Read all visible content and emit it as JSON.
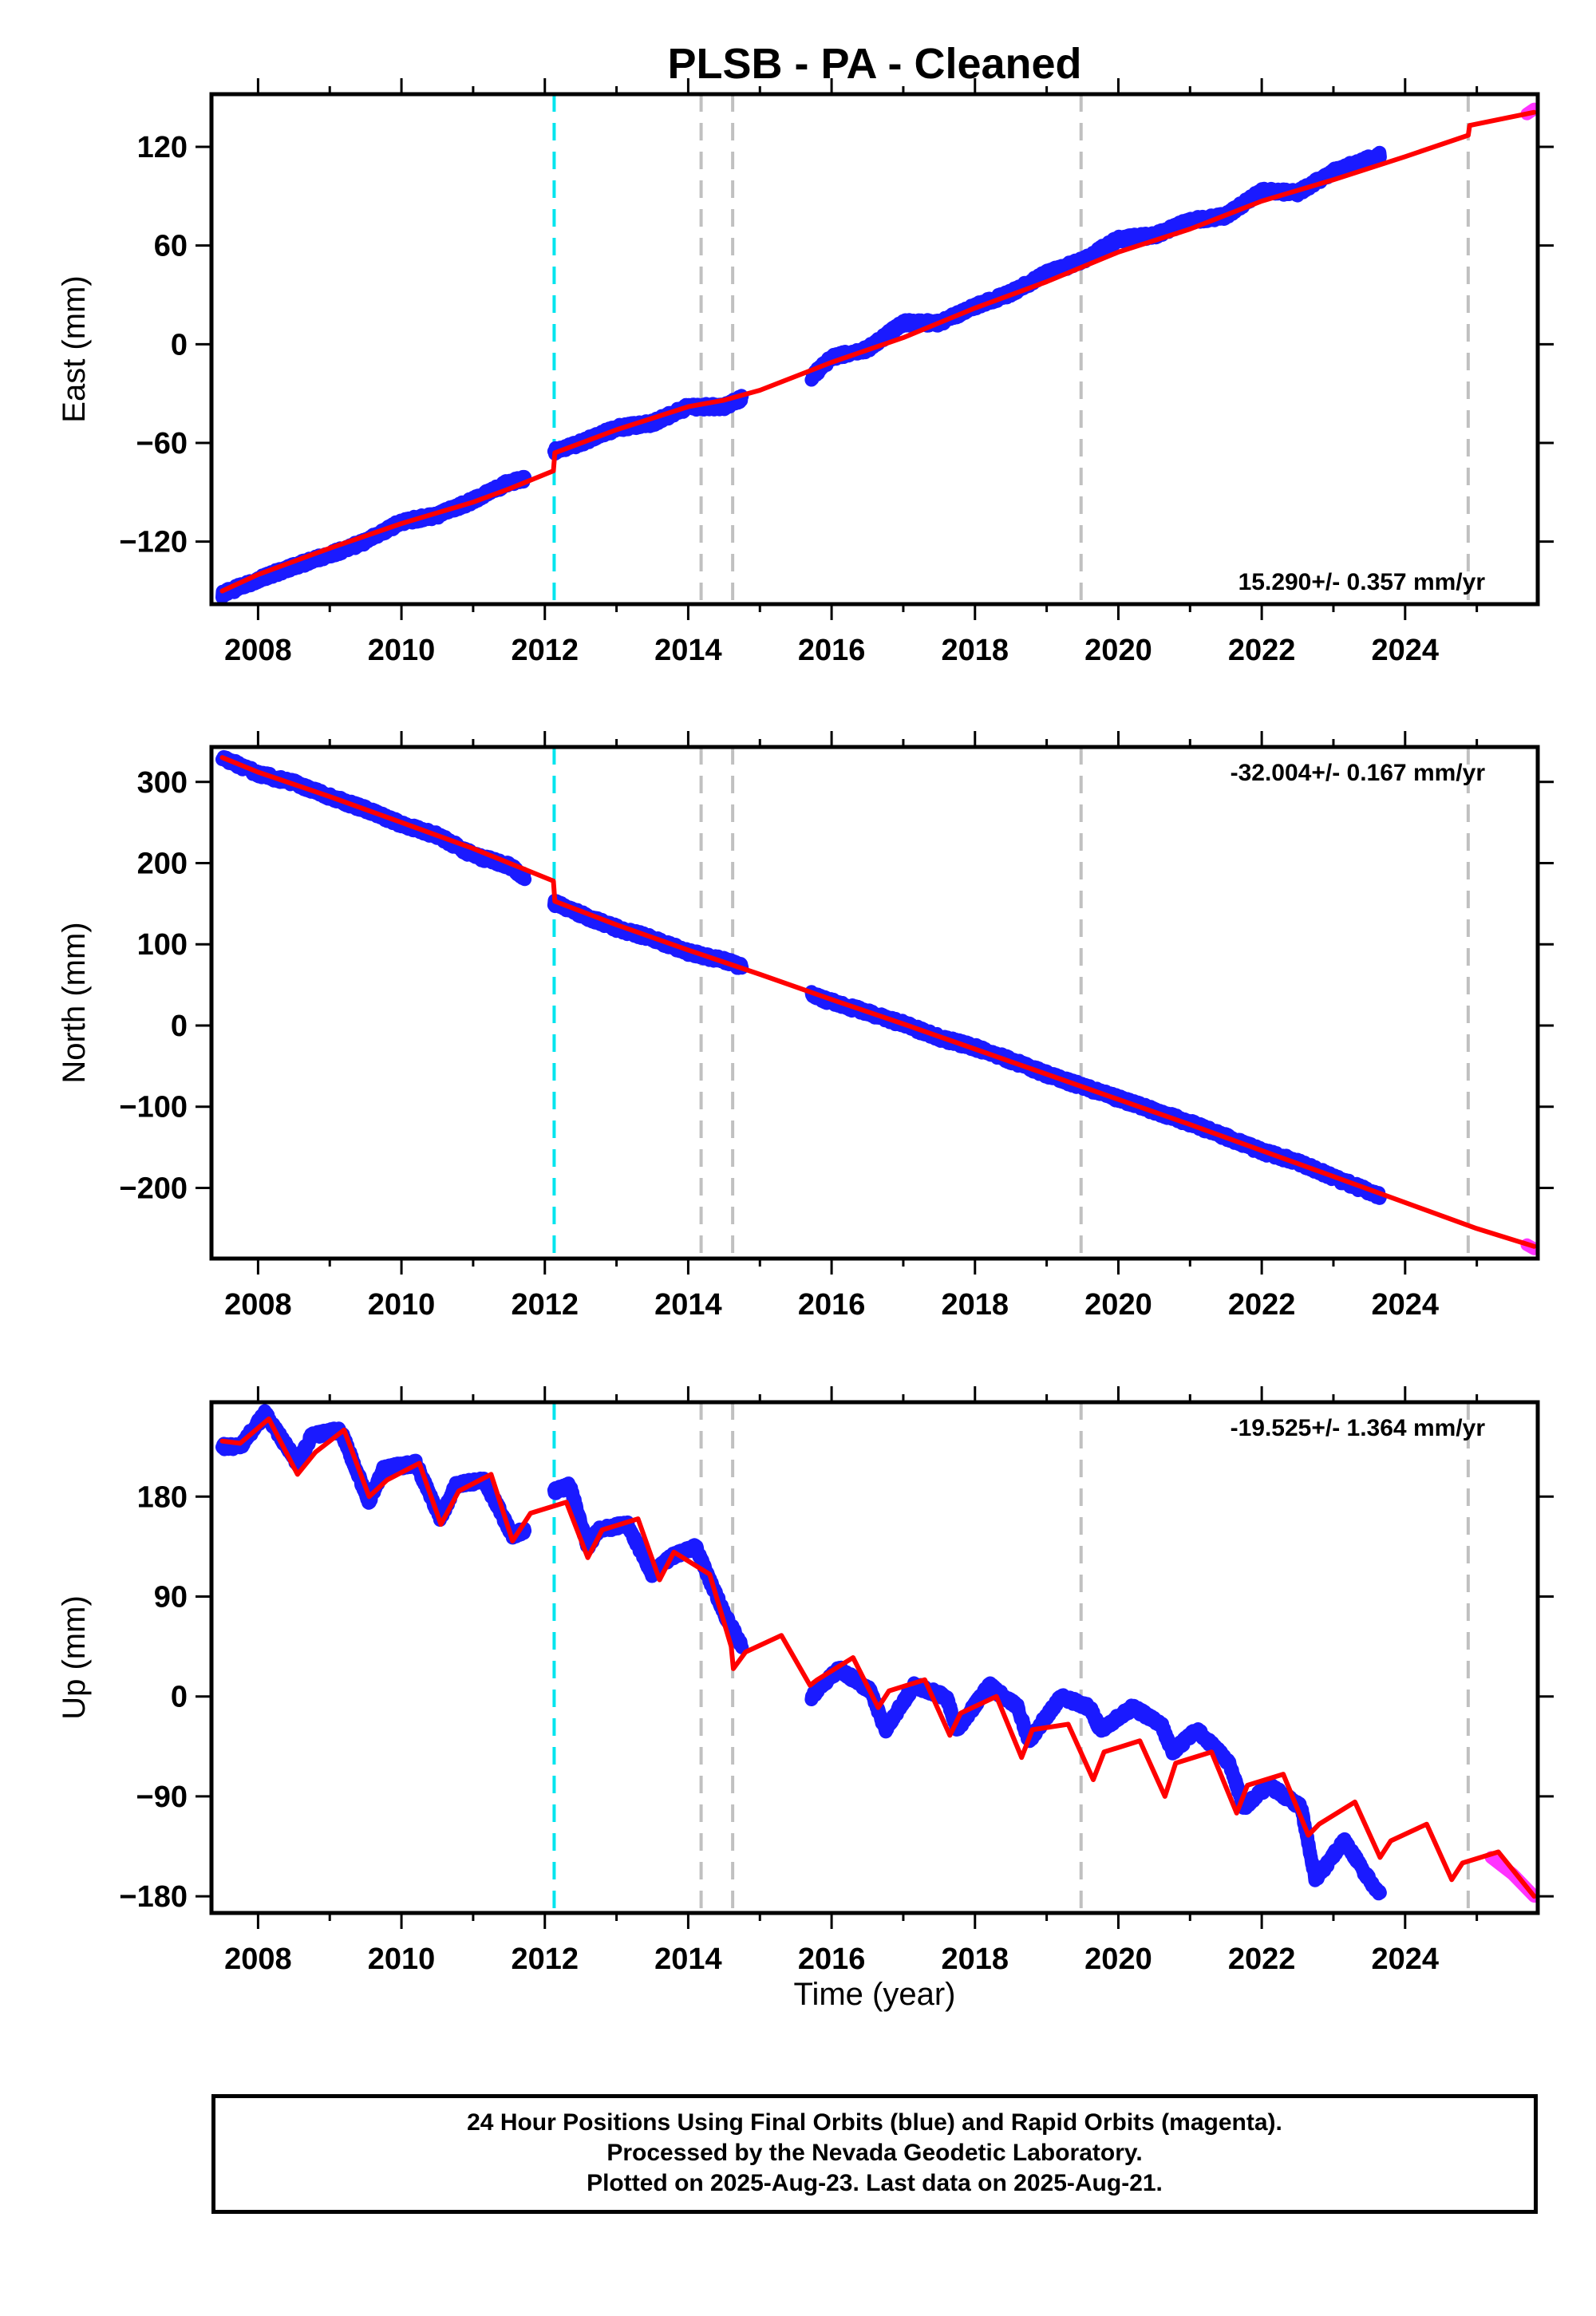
{
  "title": "PLSB  - PA - Cleaned",
  "x_axis": {
    "label": "Time (year)",
    "ticks": [
      2008,
      2010,
      2012,
      2014,
      2016,
      2018,
      2020,
      2022,
      2024
    ],
    "range": [
      2007.35,
      2025.85
    ]
  },
  "footer": {
    "line1": "24 Hour Positions Using Final Orbits (blue) and Rapid Orbits (magenta).",
    "line2": "Processed by the Nevada Geodetic Laboratory.",
    "line3": "Plotted on 2025-Aug-23. Last data on 2025-Aug-21."
  },
  "colors": {
    "final_orbits": "#1a1aff",
    "rapid_orbits": "#ff33ff",
    "model": "#ff0000",
    "antenna_change": "#00e5ee",
    "equipment_change": "#c0c0c0"
  },
  "chart_data": [
    {
      "type": "scatter",
      "ylabel": "East (mm)",
      "rate_label": "15.290+/- 0.357 mm/yr",
      "rate_position": "bottom-right",
      "ylim": [
        -158,
        152
      ],
      "yticks": [
        -120,
        -60,
        0,
        60,
        120
      ],
      "vlines": {
        "cyan": [
          2012.13
        ],
        "gray": [
          2014.18,
          2014.62,
          2019.48,
          2024.88
        ]
      },
      "series": [
        {
          "color": "blue",
          "gaps": [
            [
              2011.72,
              2012.13
            ],
            [
              2014.75,
              2015.72
            ],
            [
              2023.65,
              2024.99
            ]
          ],
          "x": [
            2007.5,
            2008.0,
            2008.5,
            2009.0,
            2009.5,
            2010.0,
            2010.5,
            2011.0,
            2011.5,
            2011.72,
            2012.13,
            2012.5,
            2013.0,
            2013.5,
            2014.0,
            2014.5,
            2014.75,
            2015.72,
            2016.0,
            2016.5,
            2017.0,
            2017.5,
            2018.0,
            2018.5,
            2019.0,
            2019.5,
            2020.0,
            2020.5,
            2021.0,
            2021.5,
            2022.0,
            2022.5,
            2023.0,
            2023.65
          ],
          "y": [
            -152,
            -143,
            -135,
            -128,
            -120,
            -108,
            -104,
            -95,
            -84,
            -82,
            -65,
            -60,
            -51,
            -48,
            -38,
            -38,
            -33,
            -20,
            -8,
            -3,
            13,
            13,
            23,
            31,
            43,
            51,
            64,
            66,
            75,
            78,
            93,
            92,
            105,
            115
          ]
        },
        {
          "color": "magenta",
          "x": [
            2025.7,
            2025.8
          ],
          "y": [
            140,
            143
          ]
        },
        {
          "color": "red",
          "name": "model",
          "x": [
            2007.5,
            2008.0,
            2009.0,
            2010.0,
            2011.0,
            2011.5,
            2012.12,
            2012.14,
            2013.0,
            2014.0,
            2014.5,
            2015.0,
            2016.0,
            2017.0,
            2018.0,
            2019.0,
            2020.0,
            2021.0,
            2022.0,
            2023.0,
            2024.0,
            2024.88,
            2024.9,
            2025.8
          ],
          "y": [
            -150,
            -140,
            -124,
            -109,
            -96,
            -88,
            -77,
            -66,
            -52,
            -38,
            -34,
            -28,
            -11,
            4,
            22,
            38,
            56,
            70,
            87,
            100,
            114,
            127,
            133,
            141
          ]
        }
      ]
    },
    {
      "type": "scatter",
      "ylabel": "North (mm)",
      "rate_label": "-32.004+/- 0.167 mm/yr",
      "rate_position": "top-right",
      "ylim": [
        -287,
        343
      ],
      "yticks": [
        -200,
        -100,
        0,
        100,
        200,
        300
      ],
      "vlines": {
        "cyan": [
          2012.13
        ],
        "gray": [
          2014.18,
          2014.62,
          2019.48,
          2024.88
        ]
      },
      "series": [
        {
          "color": "blue",
          "gaps": [
            [
              2011.72,
              2012.13
            ],
            [
              2014.75,
              2015.72
            ],
            [
              2023.65,
              2024.99
            ]
          ],
          "x": [
            2007.5,
            2008.0,
            2008.5,
            2009.0,
            2009.5,
            2010.0,
            2010.5,
            2011.0,
            2011.5,
            2011.72,
            2012.13,
            2012.5,
            2013.0,
            2013.5,
            2014.0,
            2014.5,
            2014.75,
            2015.72,
            2016.0,
            2016.5,
            2017.0,
            2017.5,
            2018.0,
            2018.5,
            2019.0,
            2019.5,
            2020.0,
            2020.5,
            2021.0,
            2021.5,
            2022.0,
            2022.5,
            2023.0,
            2023.65
          ],
          "y": [
            330,
            310,
            299,
            282,
            266,
            248,
            234,
            210,
            197,
            183,
            151,
            137,
            120,
            107,
            90,
            80,
            72,
            38,
            29,
            16,
            2,
            -15,
            -27,
            -43,
            -60,
            -75,
            -90,
            -105,
            -120,
            -137,
            -155,
            -168,
            -187,
            -210
          ]
        },
        {
          "color": "magenta",
          "x": [
            2025.7,
            2025.8
          ],
          "y": [
            -270,
            -275
          ]
        },
        {
          "color": "red",
          "name": "model",
          "x": [
            2007.5,
            2008.0,
            2009.0,
            2010.0,
            2011.0,
            2012.12,
            2012.14,
            2013.0,
            2014.0,
            2015.0,
            2016.0,
            2017.0,
            2018.0,
            2019.0,
            2020.0,
            2021.0,
            2022.0,
            2023.0,
            2024.0,
            2025.0,
            2025.8
          ],
          "y": [
            330,
            312,
            282,
            250,
            218,
            178,
            153,
            124,
            93,
            63,
            32,
            2,
            -29,
            -60,
            -91,
            -122,
            -154,
            -186,
            -218,
            -250,
            -272
          ]
        }
      ]
    },
    {
      "type": "scatter",
      "ylabel": "Up (mm)",
      "rate_label": "-19.525+/- 1.364 mm/yr",
      "rate_position": "top-right",
      "ylim": [
        -195,
        265
      ],
      "yticks": [
        -180,
        -90,
        0,
        90,
        180
      ],
      "vlines": {
        "cyan": [
          2012.13
        ],
        "gray": [
          2014.18,
          2014.62,
          2019.48,
          2024.88
        ]
      },
      "series": [
        {
          "color": "blue",
          "gaps": [
            [
              2011.72,
              2012.13
            ],
            [
              2014.75,
              2015.72
            ],
            [
              2023.65,
              2024.99
            ]
          ],
          "x": [
            2007.5,
            2007.75,
            2008.1,
            2008.55,
            2008.75,
            2009.15,
            2009.55,
            2009.75,
            2010.2,
            2010.55,
            2010.75,
            2011.15,
            2011.55,
            2011.72,
            2012.13,
            2012.35,
            2012.6,
            2012.75,
            2013.15,
            2013.5,
            2013.75,
            2014.1,
            2014.5,
            2014.75,
            2015.72,
            2016.1,
            2016.55,
            2016.75,
            2017.15,
            2017.6,
            2017.75,
            2018.2,
            2018.6,
            2018.75,
            2019.2,
            2019.6,
            2019.75,
            2020.2,
            2020.6,
            2020.75,
            2021.1,
            2021.55,
            2021.75,
            2022.1,
            2022.55,
            2022.75,
            2023.15,
            2023.6,
            2023.65
          ],
          "y": [
            225,
            225,
            255,
            210,
            235,
            240,
            175,
            205,
            210,
            160,
            190,
            195,
            145,
            150,
            185,
            190,
            135,
            150,
            155,
            110,
            125,
            135,
            75,
            45,
            0,
            25,
            5,
            -30,
            10,
            0,
            -30,
            10,
            -10,
            -40,
            0,
            -10,
            -30,
            -10,
            -25,
            -50,
            -30,
            -60,
            -100,
            -80,
            -100,
            -165,
            -130,
            -175,
            -175
          ]
        },
        {
          "color": "magenta",
          "x": [
            2025.2,
            2025.5,
            2025.8
          ],
          "y": [
            -145,
            -160,
            -180
          ]
        },
        {
          "color": "red",
          "name": "model",
          "x": [
            2007.5,
            2007.75,
            2008.15,
            2008.55,
            2008.8,
            2009.2,
            2009.55,
            2009.8,
            2010.25,
            2010.55,
            2010.8,
            2011.25,
            2011.55,
            2011.8,
            2012.3,
            2012.6,
            2012.8,
            2013.3,
            2013.6,
            2013.8,
            2014.3,
            2014.6,
            2014.63,
            2014.8,
            2015.3,
            2015.7,
            2015.8,
            2016.3,
            2016.65,
            2016.8,
            2017.3,
            2017.65,
            2017.8,
            2018.3,
            2018.65,
            2018.8,
            2019.3,
            2019.65,
            2019.8,
            2020.3,
            2020.65,
            2020.8,
            2021.3,
            2021.65,
            2021.8,
            2022.3,
            2022.65,
            2022.8,
            2023.3,
            2023.65,
            2023.8,
            2024.3,
            2024.65,
            2024.8,
            2025.3,
            2025.8
          ],
          "y": [
            230,
            228,
            250,
            200,
            220,
            240,
            180,
            195,
            210,
            155,
            185,
            200,
            140,
            165,
            175,
            125,
            150,
            160,
            105,
            130,
            110,
            45,
            25,
            40,
            55,
            10,
            15,
            35,
            -10,
            5,
            15,
            -35,
            -15,
            0,
            -55,
            -30,
            -25,
            -75,
            -50,
            -40,
            -90,
            -60,
            -50,
            -105,
            -80,
            -70,
            -125,
            -115,
            -95,
            -145,
            -130,
            -115,
            -165,
            -150,
            -140,
            -180
          ]
        }
      ]
    }
  ]
}
